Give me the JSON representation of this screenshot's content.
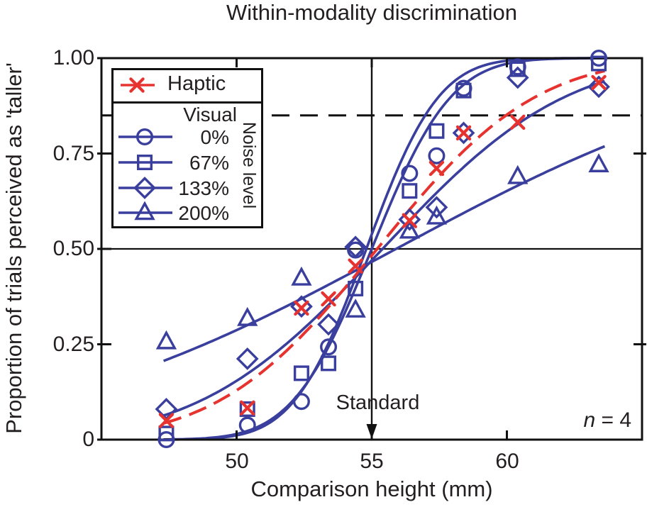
{
  "figure": {
    "title": "Within-modality discrimination",
    "x_axis": {
      "label": "Comparison height (mm)",
      "ticks": [
        {
          "value": 50,
          "label": "50"
        },
        {
          "value": 55,
          "label": "55"
        },
        {
          "value": 60,
          "label": "60"
        }
      ]
    },
    "y_axis": {
      "label": "Proportion of trials perceived as 'taller'",
      "ticks": [
        {
          "value": 1.0,
          "label": "1.00"
        },
        {
          "value": 0.75,
          "label": "0.75"
        },
        {
          "value": 0.5,
          "label": "0.50"
        },
        {
          "value": 0.25,
          "label": "0.25"
        },
        {
          "value": 0,
          "label": "0"
        }
      ]
    },
    "legend": {
      "haptic_label": "Haptic",
      "visual_label": "Visual",
      "noise_level_label": "Noise level",
      "noise_rows": [
        {
          "label": "0%",
          "marker": "circle"
        },
        {
          "label": "67%",
          "marker": "square"
        },
        {
          "label": "133%",
          "marker": "diamond"
        },
        {
          "label": "200%",
          "marker": "triangle"
        }
      ]
    },
    "annotations": {
      "standard_label": "Standard",
      "standard_x_mm": 55,
      "sample_size_italic": "n",
      "sample_size_rest": " = 4",
      "dashed_threshold": 0.85,
      "midpoint_line": 0.5
    },
    "colors": {
      "blue": "#3a3f9d",
      "red": "#e73330",
      "axis_black": "#111111",
      "text": "#231f20"
    }
  },
  "chart_data": {
    "type": "scatter",
    "title": "Within-modality discrimination",
    "xlabel": "Comparison height (mm)",
    "ylabel": "Proportion of trials perceived as 'taller'",
    "xlim": [
      45,
      65
    ],
    "ylim": [
      0,
      1
    ],
    "x_ticks": [
      50,
      55,
      60
    ],
    "y_ticks": [
      0,
      0.25,
      0.5,
      0.75,
      1.0
    ],
    "right_side_ticks": [
      0.25,
      0.75
    ],
    "grid": false,
    "legend_position": "upper-left",
    "reference_lines": {
      "horizontal_solid_y": 0.5,
      "horizontal_dashed_y": 0.85,
      "vertical_solid_x": 55
    },
    "annotation_n": 4,
    "series": [
      {
        "name": "Haptic",
        "marker": "x",
        "color": "#e73330",
        "line": "dashed",
        "fit_cumulative_gaussian": {
          "mu": 55.2,
          "sigma": 4.6
        },
        "points": [
          [
            47.4,
            0.05
          ],
          [
            50.4,
            0.083
          ],
          [
            52.4,
            0.345
          ],
          [
            53.4,
            0.369
          ],
          [
            54.4,
            0.455
          ],
          [
            56.4,
            0.574
          ],
          [
            57.4,
            0.711
          ],
          [
            58.4,
            0.804
          ],
          [
            60.4,
            0.832
          ],
          [
            63.4,
            0.936
          ]
        ]
      },
      {
        "name": "Visual 0% noise",
        "marker": "circle",
        "color": "#3a3f9d",
        "line": "solid",
        "fit_cumulative_gaussian": {
          "mu": 54.8,
          "sigma": 2.1
        },
        "points": [
          [
            47.4,
            0.0
          ],
          [
            50.4,
            0.038
          ],
          [
            52.4,
            0.1
          ],
          [
            53.4,
            0.243
          ],
          [
            54.4,
            0.497
          ],
          [
            56.4,
            0.698
          ],
          [
            57.4,
            0.744
          ],
          [
            58.4,
            0.921
          ],
          [
            60.4,
            0.977
          ],
          [
            63.4,
            1.0
          ]
        ]
      },
      {
        "name": "Visual 67% noise",
        "marker": "square",
        "color": "#3a3f9d",
        "line": "solid",
        "fit_cumulative_gaussian": {
          "mu": 55.0,
          "sigma": 2.3
        },
        "points": [
          [
            47.4,
            0.016
          ],
          [
            50.4,
            0.08
          ],
          [
            52.4,
            0.174
          ],
          [
            53.4,
            0.2
          ],
          [
            54.4,
            0.396
          ],
          [
            56.4,
            0.652
          ],
          [
            57.4,
            0.809
          ],
          [
            58.4,
            0.915
          ],
          [
            60.4,
            0.971
          ],
          [
            63.4,
            0.986
          ]
        ]
      },
      {
        "name": "Visual 133% noise",
        "marker": "diamond",
        "color": "#3a3f9d",
        "line": "solid",
        "fit_cumulative_gaussian": {
          "mu": 55.4,
          "sigma": 5.3
        },
        "points": [
          [
            47.4,
            0.08
          ],
          [
            50.4,
            0.212
          ],
          [
            52.4,
            0.349
          ],
          [
            53.4,
            0.302
          ],
          [
            54.4,
            0.505
          ],
          [
            56.4,
            0.577
          ],
          [
            57.4,
            0.609
          ],
          [
            58.4,
            0.804
          ],
          [
            60.4,
            0.949
          ],
          [
            63.4,
            0.925
          ]
        ]
      },
      {
        "name": "Visual 200% noise",
        "marker": "triangle",
        "color": "#3a3f9d",
        "line": "solid",
        "fit_cumulative_gaussian": {
          "mu": 55.9,
          "sigma": 10.5
        },
        "points": [
          [
            47.4,
            0.256
          ],
          [
            50.4,
            0.317
          ],
          [
            52.4,
            0.423
          ],
          [
            54.4,
            0.339
          ],
          [
            56.4,
            0.546
          ],
          [
            57.4,
            0.583
          ],
          [
            60.4,
            0.689
          ],
          [
            63.4,
            0.72
          ]
        ]
      }
    ]
  }
}
